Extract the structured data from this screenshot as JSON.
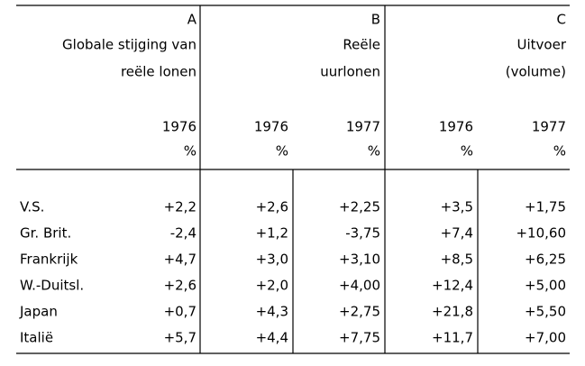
{
  "table": {
    "groups": [
      {
        "letter": "A",
        "lines": [
          "Globale stijging van",
          "reële lonen"
        ]
      },
      {
        "letter": "B",
        "lines": [
          "Reële",
          "uurlonen"
        ]
      },
      {
        "letter": "C",
        "lines": [
          "Uitvoer",
          "(volume)"
        ]
      }
    ],
    "years": [
      "1976",
      "1976",
      "1977",
      "1976",
      "1977"
    ],
    "units": [
      "%",
      "%",
      "%",
      "%",
      "%"
    ],
    "rows": [
      {
        "label": "V.S.",
        "cells": [
          "+2,2",
          "+2,6",
          "+2,25",
          "+3,5",
          "+1,75"
        ]
      },
      {
        "label": "Gr. Brit.",
        "cells": [
          "-2,4",
          "+1,2",
          "-3,75",
          "+7,4",
          "+10,60"
        ]
      },
      {
        "label": "Frankrijk",
        "cells": [
          "+4,7",
          "+3,0",
          "+3,10",
          "+8,5",
          "+6,25"
        ]
      },
      {
        "label": "W.-Duitsl.",
        "cells": [
          "+2,6",
          "+2,0",
          "+4,00",
          "+12,4",
          "+5,00"
        ]
      },
      {
        "label": "Japan",
        "cells": [
          "+0,7",
          "+4,3",
          "+2,75",
          "+21,8",
          "+5,50"
        ]
      },
      {
        "label": "Italië",
        "cells": [
          "+5,7",
          "+4,4",
          "+7,75",
          "+11,7",
          "+7,00"
        ]
      }
    ]
  }
}
